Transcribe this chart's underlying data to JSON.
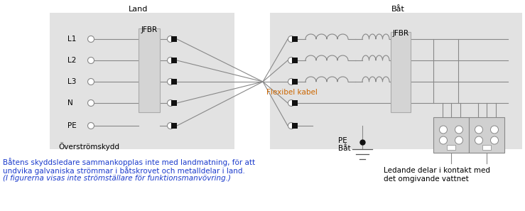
{
  "fig_width": 7.39,
  "fig_height": 2.97,
  "dpi": 100,
  "bg_color": "#ffffff",
  "panel_color": "#e2e2e2",
  "line_color": "#888888",
  "dark_line": "#555555",
  "text_color": "#000000",
  "orange_color": "#cc6600",
  "blue_color": "#1a3acc",
  "title_land": "Land",
  "title_bat": "Båt",
  "jfbr_label": "JFBR",
  "flexibel_label": "Flexibel kabel",
  "overstr_label": "Överströmskydd",
  "pe_bat_label1": "PE",
  "pe_bat_label2": "Båt",
  "ledande_label": "Ledande delar i kontakt med\ndet omgivande vattnet",
  "caption_line1": "Båtens skyddsledare sammankopplas inte med landmatning, för att",
  "caption_line2": "undvika galvaniska strömmar i båtskrovet och metalldelar i land.",
  "caption_line3": "(I figurerna visas inte strömställare för funktionsmanvövring.)",
  "labels_land": [
    "L1",
    "L2",
    "L3",
    "N",
    "PE"
  ]
}
